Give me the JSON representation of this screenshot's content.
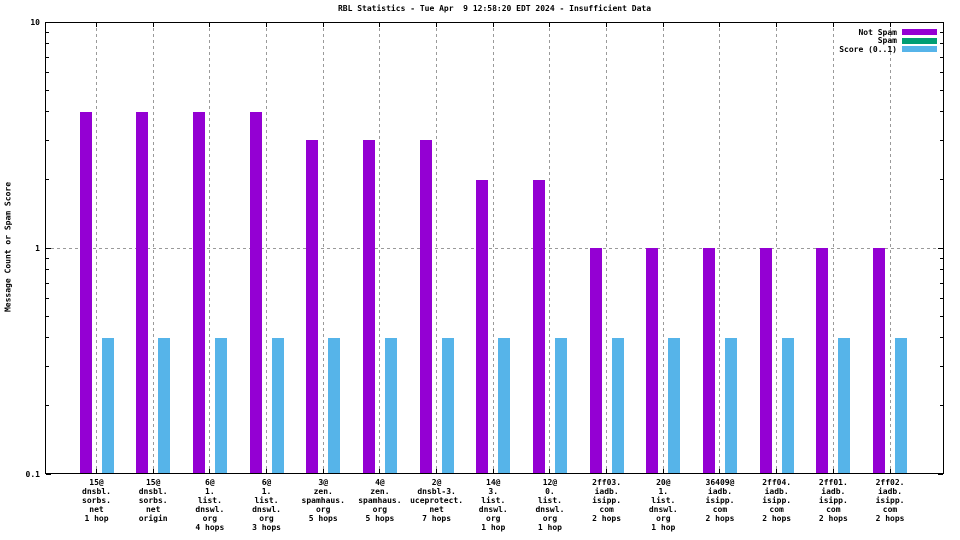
{
  "title": "RBL Statistics - Tue Apr  9 12:58:20 EDT 2024 - Insufficient Data",
  "chart_data": {
    "type": "bar",
    "title": "RBL Statistics - Tue Apr  9 12:58:20 EDT 2024 - Insufficient Data",
    "xlabel": "",
    "ylabel": "Message Count or Spam Score",
    "yscale": "log",
    "ylim": [
      0.1,
      10
    ],
    "yticks": [
      {
        "value": 10,
        "label": "10"
      },
      {
        "value": 1,
        "label": "1"
      },
      {
        "value": 0.1,
        "label": "0.1"
      }
    ],
    "grid": {
      "horizontal_dashed_at": [
        1
      ],
      "vertical_dashed_at_each_category": true
    },
    "legend_position": "top-right-inside",
    "legend": [
      {
        "label": "Not Spam",
        "color": "#9400d3"
      },
      {
        "label": "Spam",
        "color": "#009e73"
      },
      {
        "label": "Score (0..1)",
        "color": "#56b4e9"
      }
    ],
    "categories": [
      [
        "15@",
        "dnsbl.",
        "sorbs.",
        "net",
        "1 hop"
      ],
      [
        "15@",
        "dnsbl.",
        "sorbs.",
        "net",
        "origin"
      ],
      [
        "6@",
        "1.",
        "list.",
        "dnswl.",
        "org",
        "4 hops"
      ],
      [
        "6@",
        "1.",
        "list.",
        "dnswl.",
        "org",
        "3 hops"
      ],
      [
        "3@",
        "zen.",
        "spamhaus.",
        "org",
        "5 hops"
      ],
      [
        "4@",
        "zen.",
        "spamhaus.",
        "org",
        "5 hops"
      ],
      [
        "2@",
        "dnsbl-3.",
        "uceprotect.",
        "net",
        "7 hops"
      ],
      [
        "14@",
        "3.",
        "list.",
        "dnswl.",
        "org",
        "1 hop"
      ],
      [
        "12@",
        "0.",
        "list.",
        "dnswl.",
        "org",
        "1 hop"
      ],
      [
        "2ff03.",
        "iadb.",
        "isipp.",
        "com",
        "2 hops"
      ],
      [
        "20@",
        "1.",
        "list.",
        "dnswl.",
        "org",
        "1 hop"
      ],
      [
        "36409@",
        "iadb.",
        "isipp.",
        "com",
        "2 hops"
      ],
      [
        "2ff04.",
        "iadb.",
        "isipp.",
        "com",
        "2 hops"
      ],
      [
        "2ff01.",
        "iadb.",
        "isipp.",
        "com",
        "2 hops"
      ],
      [
        "2ff02.",
        "iadb.",
        "isipp.",
        "com",
        "2 hops"
      ]
    ],
    "series": [
      {
        "name": "Not Spam",
        "color": "#9400d3",
        "values": [
          4,
          4,
          4,
          4,
          3,
          3,
          3,
          2,
          2,
          1,
          1,
          1,
          1,
          1,
          1
        ]
      },
      {
        "name": "Spam",
        "color": "#009e73",
        "values": [
          0,
          0,
          0,
          0,
          0,
          0,
          0,
          0,
          0,
          0,
          0,
          0,
          0,
          0,
          0
        ]
      },
      {
        "name": "Score (0..1)",
        "color": "#56b4e9",
        "values": [
          0.4,
          0.4,
          0.4,
          0.4,
          0.4,
          0.4,
          0.4,
          0.4,
          0.4,
          0.4,
          0.4,
          0.4,
          0.4,
          0.4,
          0.4
        ]
      }
    ]
  },
  "colors": {
    "not_spam": "#9400d3",
    "spam": "#009e73",
    "score": "#56b4e9",
    "grid": "#9a9a9a",
    "border": "#000000",
    "background": "#ffffff"
  }
}
